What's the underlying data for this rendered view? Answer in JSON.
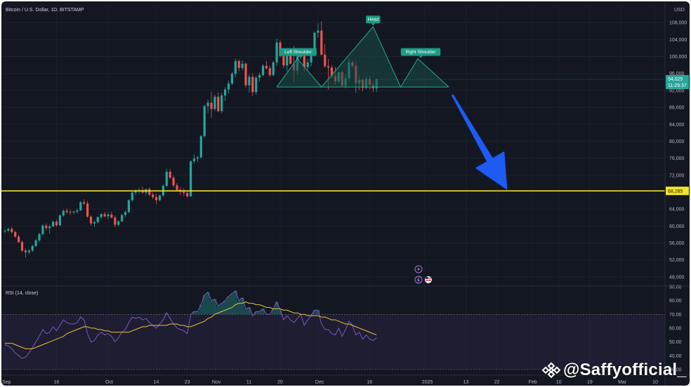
{
  "header": {
    "title": "Bitcoin / U.S. Dollar, 1D, BITSTAMP",
    "currency": "USD"
  },
  "watermark": {
    "handle": "@Saffyofficial_",
    "logo_icon": "binance-logo-icon"
  },
  "colors": {
    "up": "#26a69a",
    "down": "#ef5350",
    "support": "#f5e52a",
    "arrow": "#1e5bf5",
    "rsi_line": "#7e57c2",
    "rsi_ma": "#e3c23a",
    "pattern_fill": "#1b4c45",
    "pattern_line": "#22ab94",
    "label_bg": "#1a9c83"
  },
  "chart_data": [
    {
      "type": "candlestick",
      "symbol": "Bitcoin / U.S. Dollar",
      "interval": "1D",
      "exchange": "BITSTAMP",
      "ylim": [
        46000,
        112000
      ],
      "y_ticks": [
        "108,000",
        "104,000",
        "100,000",
        "96,000",
        "92,000",
        "88,000",
        "84,000",
        "80,000",
        "76,000",
        "72,000",
        "64,000",
        "60,000",
        "56,000",
        "52,000",
        "48,000"
      ],
      "x_ticks": [
        "Sep",
        "16",
        "Oct",
        "14",
        "23",
        "Nov",
        "11",
        "20",
        "Dec",
        "16",
        "2025",
        "13",
        "22",
        "Feb",
        "10",
        "19",
        "Mar",
        "10"
      ],
      "x_tick_days": [
        0,
        15,
        30,
        44,
        53,
        61,
        71,
        80,
        91,
        106,
        122,
        134,
        143,
        153,
        161,
        170,
        179,
        189
      ],
      "last_price": "94,625",
      "countdown": "11:29:37",
      "support_level": "68,285",
      "support_value": 68285,
      "annotations": [
        "Left Shoulder",
        "Head",
        "Right Shoulder"
      ],
      "pattern": {
        "name": "head-and-shoulders",
        "neckline_value": 92800,
        "left_shoulder": {
          "day": 85,
          "value": 99500
        },
        "head": {
          "day": 107,
          "value": 107000
        },
        "right_shoulder": {
          "day": 120,
          "value": 99500
        },
        "neckline_start_day": 79,
        "neckline_end_day": 129
      },
      "projection": {
        "from_day": 130,
        "from_value": 91000,
        "to_day": 146,
        "to_value": 68500
      },
      "candles": [
        [
          58800,
          59200,
          58400,
          58900
        ],
        [
          58900,
          59600,
          58500,
          59300
        ],
        [
          59300,
          59800,
          58200,
          58600
        ],
        [
          58600,
          58900,
          57200,
          57500
        ],
        [
          57500,
          57900,
          56000,
          56200
        ],
        [
          56200,
          56600,
          53900,
          54200
        ],
        [
          54200,
          54700,
          52600,
          53800
        ],
        [
          53800,
          54500,
          53300,
          54200
        ],
        [
          54200,
          55500,
          53900,
          55300
        ],
        [
          55300,
          57000,
          55000,
          56600
        ],
        [
          56600,
          58400,
          56300,
          58100
        ],
        [
          58100,
          60400,
          57800,
          60100
        ],
        [
          60100,
          60600,
          59000,
          59500
        ],
        [
          59500,
          60300,
          58200,
          59900
        ],
        [
          59900,
          61300,
          59700,
          61000
        ],
        [
          61000,
          61500,
          59800,
          60200
        ],
        [
          60200,
          62800,
          60000,
          62500
        ],
        [
          62500,
          63900,
          62200,
          63600
        ],
        [
          63600,
          64100,
          62800,
          63300
        ],
        [
          63300,
          63800,
          62600,
          63200
        ],
        [
          63200,
          63600,
          62700,
          63400
        ],
        [
          63400,
          64100,
          62900,
          63700
        ],
        [
          63700,
          65900,
          63500,
          65600
        ],
        [
          65600,
          66300,
          64900,
          65300
        ],
        [
          65300,
          65900,
          62000,
          62200
        ],
        [
          62200,
          62500,
          60100,
          60600
        ],
        [
          60600,
          61300,
          59800,
          60900
        ],
        [
          60900,
          62300,
          60600,
          62100
        ],
        [
          62100,
          63000,
          61700,
          62800
        ],
        [
          62800,
          63300,
          62000,
          62300
        ],
        [
          62300,
          63200,
          61600,
          62700
        ],
        [
          62700,
          63400,
          61800,
          62000
        ],
        [
          62000,
          62500,
          59700,
          60300
        ],
        [
          60300,
          61400,
          59900,
          61100
        ],
        [
          61100,
          62900,
          60900,
          62600
        ],
        [
          62600,
          63600,
          62100,
          63300
        ],
        [
          63300,
          66300,
          63100,
          66100
        ],
        [
          66100,
          68200,
          65700,
          67900
        ],
        [
          67900,
          68700,
          67200,
          68300
        ],
        [
          68300,
          69000,
          67600,
          68500
        ],
        [
          68500,
          69300,
          67700,
          67900
        ],
        [
          67900,
          68800,
          67300,
          68700
        ],
        [
          68700,
          69100,
          67000,
          67400
        ],
        [
          67400,
          67900,
          66400,
          66800
        ],
        [
          66800,
          67600,
          65200,
          66100
        ],
        [
          66100,
          67400,
          65800,
          67200
        ],
        [
          67200,
          69800,
          66900,
          69500
        ],
        [
          69500,
          73500,
          69200,
          72800
        ],
        [
          72800,
          73500,
          71200,
          71400
        ],
        [
          71400,
          71900,
          69100,
          69600
        ],
        [
          69600,
          70100,
          68200,
          68500
        ],
        [
          68500,
          69200,
          67300,
          68100
        ],
        [
          68100,
          69000,
          67100,
          67800
        ],
        [
          67800,
          68300,
          66700,
          67000
        ],
        [
          67000,
          75400,
          66900,
          75300
        ],
        [
          75300,
          76900,
          74800,
          75900
        ],
        [
          75900,
          76500,
          75100,
          76200
        ],
        [
          76200,
          81500,
          76000,
          81200
        ],
        [
          81200,
          88500,
          80900,
          88300
        ],
        [
          88300,
          89800,
          86700,
          89100
        ],
        [
          89100,
          91600,
          85500,
          87600
        ],
        [
          87600,
          91000,
          87100,
          90500
        ],
        [
          90500,
          91500,
          86800,
          87100
        ],
        [
          87100,
          91500,
          86600,
          90800
        ],
        [
          90800,
          92800,
          89500,
          92200
        ],
        [
          92200,
          94300,
          91300,
          93600
        ],
        [
          93600,
          96300,
          93200,
          95900
        ],
        [
          95900,
          99500,
          95100,
          98900
        ],
        [
          98900,
          99300,
          96500,
          97300
        ],
        [
          97300,
          99100,
          96700,
          98300
        ],
        [
          98300,
          98600,
          92600,
          93200
        ],
        [
          93200,
          95800,
          91500,
          95200
        ],
        [
          95200,
          96000,
          90700,
          91600
        ],
        [
          91600,
          95400,
          91000,
          95000
        ],
        [
          95000,
          96200,
          94100,
          95600
        ],
        [
          95600,
          98200,
          95300,
          97800
        ],
        [
          97800,
          98900,
          96900,
          97200
        ],
        [
          97200,
          97800,
          95200,
          95600
        ],
        [
          95600,
          99000,
          95400,
          98600
        ],
        [
          98600,
          104200,
          97800,
          103300
        ],
        [
          103300,
          103800,
          99800,
          100100
        ],
        [
          100100,
          101500,
          97200,
          97900
        ],
        [
          97900,
          100500,
          96500,
          100200
        ],
        [
          100200,
          101600,
          98100,
          98300
        ],
        [
          98300,
          102500,
          94100,
          96700
        ],
        [
          96700,
          100300,
          95600,
          99900
        ],
        [
          99900,
          101900,
          99500,
          101300
        ],
        [
          101300,
          101400,
          96400,
          97500
        ],
        [
          97500,
          99500,
          96900,
          98600
        ],
        [
          98600,
          100700,
          97700,
          100200
        ],
        [
          100200,
          105900,
          100000,
          105600
        ],
        [
          105600,
          107800,
          104400,
          106100
        ],
        [
          106100,
          108300,
          100300,
          100400
        ],
        [
          100400,
          102900,
          97300,
          97700
        ],
        [
          97700,
          99400,
          92200,
          97400
        ],
        [
          97400,
          98000,
          94800,
          95400
        ],
        [
          95400,
          97500,
          93300,
          94100
        ],
        [
          94100,
          96400,
          93700,
          96300
        ],
        [
          96300,
          96700,
          92800,
          93100
        ],
        [
          93100,
          95900,
          92500,
          94900
        ],
        [
          94900,
          99500,
          94100,
          98600
        ],
        [
          98600,
          99000,
          97200,
          97800
        ],
        [
          97800,
          98800,
          91400,
          93700
        ],
        [
          93700,
          95400,
          92100,
          94500
        ],
        [
          94500,
          94900,
          91800,
          92600
        ],
        [
          92600,
          95400,
          92300,
          94700
        ],
        [
          94700,
          95500,
          92300,
          93300
        ],
        [
          93300,
          94200,
          91700,
          92500
        ],
        [
          92500,
          94800,
          91600,
          94625
        ]
      ]
    },
    {
      "type": "line",
      "title": "RSI (14, close)",
      "ylim": [
        30,
        90
      ],
      "y_ticks": [
        "90.00",
        "80.00",
        "70.00",
        "60.00",
        "50.00",
        "40.00",
        "30.00"
      ],
      "bands": [
        30,
        70
      ],
      "series": [
        {
          "values": [
            48,
            47,
            45,
            42,
            40,
            38,
            39,
            42,
            46,
            50,
            54,
            59,
            56,
            57,
            61,
            58,
            62,
            66,
            64,
            63,
            63,
            64,
            68,
            66,
            56,
            50,
            51,
            55,
            57,
            55,
            56,
            54,
            50,
            53,
            57,
            59,
            64,
            68,
            67,
            68,
            66,
            67,
            64,
            62,
            60,
            63,
            66,
            71,
            67,
            63,
            60,
            59,
            58,
            56,
            70,
            72,
            72,
            77,
            84,
            86,
            80,
            81,
            76,
            78,
            80,
            83,
            85,
            87,
            80,
            82,
            74,
            75,
            69,
            72,
            72,
            74,
            70,
            70,
            74,
            79,
            73,
            66,
            69,
            66,
            64,
            67,
            70,
            62,
            66,
            69,
            73,
            73,
            63,
            59,
            59,
            56,
            55,
            60,
            54,
            59,
            65,
            62,
            55,
            57,
            52,
            55,
            52,
            51,
            53
          ]
        },
        {
          "values": [
            49,
            49,
            49,
            48,
            47,
            46,
            45,
            45,
            45,
            46,
            47,
            48,
            49,
            50,
            51,
            52,
            53,
            54,
            56,
            57,
            58,
            59,
            60,
            61,
            61,
            60,
            60,
            59,
            59,
            58,
            58,
            57,
            57,
            57,
            57,
            57,
            57,
            58,
            59,
            60,
            61,
            61,
            62,
            62,
            62,
            62,
            62,
            62,
            63,
            63,
            63,
            62,
            62,
            61,
            61,
            62,
            63,
            64,
            65,
            67,
            68,
            70,
            71,
            72,
            73,
            74,
            75,
            77,
            78,
            78,
            79,
            78,
            78,
            77,
            77,
            76,
            75,
            75,
            74,
            74,
            74,
            73,
            73,
            72,
            71,
            71,
            70,
            70,
            69,
            69,
            69,
            69,
            68,
            68,
            67,
            66,
            66,
            65,
            64,
            63,
            63,
            62,
            61,
            60,
            59,
            58,
            57,
            56,
            55
          ]
        }
      ]
    }
  ]
}
